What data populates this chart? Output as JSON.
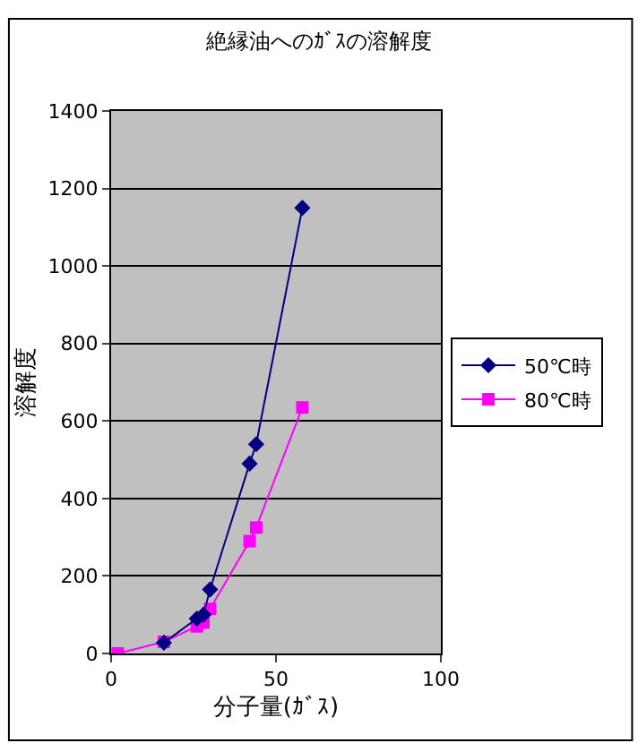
{
  "chart_data": {
    "type": "line",
    "title": "絶縁油へのｶﾞｽの溶解度",
    "xlabel": "分子量(ｶﾞｽ)",
    "ylabel": "溶解度",
    "xlim": [
      0,
      100
    ],
    "xticks": [
      0,
      50,
      100
    ],
    "ylim": [
      0,
      1400
    ],
    "yticks": [
      0,
      200,
      400,
      600,
      800,
      1000,
      1200,
      1400
    ],
    "grid": "y",
    "legend": "right",
    "series": [
      {
        "name": "50℃時",
        "color": "#000080",
        "marker": "diamond",
        "x": [
          16,
          26,
          28,
          30,
          42,
          44,
          58
        ],
        "values": [
          28,
          90,
          100,
          165,
          490,
          540,
          1150
        ]
      },
      {
        "name": "80℃時",
        "color": "#ff00ff",
        "marker": "square",
        "x": [
          2,
          16,
          26,
          28,
          30,
          42,
          44,
          58
        ],
        "values": [
          0,
          30,
          70,
          80,
          115,
          290,
          325,
          635
        ]
      }
    ]
  }
}
